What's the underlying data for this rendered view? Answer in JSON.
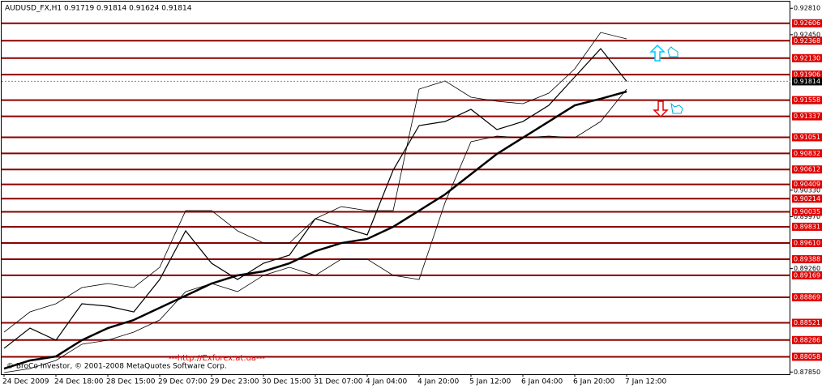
{
  "chart_data": {
    "type": "line",
    "title": "AUDUSD_FX,H1  0.91719 0.91814 0.91624 0.91814",
    "watermark": "© BroCo Investor, © 2001-2008 MetaQuotes Software Corp.",
    "link_text": "---http://Exforex.at.ua---",
    "categories": [
      "24 Dec 2009",
      null,
      "24 Dec 18:00",
      null,
      "28 Dec 15:00",
      null,
      "29 Dec 07:00",
      null,
      "29 Dec 23:00",
      null,
      "30 Dec 15:00",
      null,
      "31 Dec 07:00",
      null,
      "4 Jan 04:00",
      null,
      "4 Jan 20:00",
      null,
      "5 Jan 12:00",
      null,
      "6 Jan 04:00",
      null,
      "6 Jan 20:00",
      null,
      "7 Jan 12:00"
    ],
    "series": [
      {
        "color": "#000000",
        "line_width": 1.2,
        "values": [
          0.88173,
          0.88449,
          0.88284,
          0.88781,
          0.88748,
          0.8867,
          0.89112,
          0.89775,
          0.89333,
          0.89112,
          0.89333,
          0.89444,
          0.89941,
          0.8983,
          0.8972,
          0.90603,
          0.91211,
          0.91266,
          0.91432,
          0.91156,
          0.91266,
          0.91487,
          0.91874,
          0.9226,
          0.91814
        ]
      },
      {
        "color": "#000000",
        "line_width": 2.5,
        "values": [
          0.87897,
          0.88008,
          0.88063,
          0.88284,
          0.88449,
          0.8856,
          0.88726,
          0.88891,
          0.89057,
          0.89168,
          0.89223,
          0.89333,
          0.89499,
          0.89609,
          0.89665,
          0.8983,
          0.90051,
          0.90272,
          0.90548,
          0.90824,
          0.91045,
          0.91266,
          0.91487,
          0.91576,
          0.91675
        ]
      },
      {
        "color": "#000000",
        "line_width": 0.8,
        "values": [
          0.88394,
          0.8867,
          0.88781,
          0.89002,
          0.89057,
          0.89002,
          0.89278,
          0.90051,
          0.90051,
          0.89775,
          0.89609,
          0.89609,
          0.89941,
          0.90106,
          0.90051,
          0.90051,
          0.91708,
          0.91819,
          0.91598,
          0.91542,
          0.91509,
          0.91653,
          0.91984,
          0.92481,
          0.92393
        ]
      },
      {
        "color": "#000000",
        "line_width": 0.8,
        "values": [
          0.87842,
          0.87897,
          0.88008,
          0.88229,
          0.88284,
          0.88394,
          0.8856,
          0.88946,
          0.89057,
          0.88946,
          0.89168,
          0.89278,
          0.89168,
          0.89389,
          0.89389,
          0.89168,
          0.89112,
          0.90161,
          0.9099,
          0.91067,
          0.91045,
          0.91067,
          0.91045,
          0.91266,
          0.91708
        ]
      }
    ],
    "ylim": [
      0.8782,
      0.9289
    ],
    "yticks": [
      {
        "value": 0.9281,
        "label": "0.92810"
      },
      {
        "value": 0.9245,
        "label": "0.92450"
      },
      {
        "value": 0.9033,
        "label": "0.90330"
      },
      {
        "value": 0.8997,
        "label": "0.89970"
      },
      {
        "value": 0.8926,
        "label": "0.89260"
      },
      {
        "value": 0.8785,
        "label": "0.87850"
      }
    ],
    "levels": [
      0.92606,
      0.92368,
      {
        "value": 0.9213,
        "label": "0.92130"
      },
      0.91906,
      0.91558,
      0.91337,
      0.91051,
      0.90832,
      0.90612,
      0.90409,
      0.90214,
      0.90035,
      0.89831,
      {
        "value": 0.8961,
        "label": "0.89610"
      },
      0.89388,
      0.89169,
      0.88869,
      0.88521,
      0.88286,
      0.88058
    ],
    "level_color": "#8b0000",
    "level_label_color": "#e00000",
    "last_price": 0.91814
  }
}
